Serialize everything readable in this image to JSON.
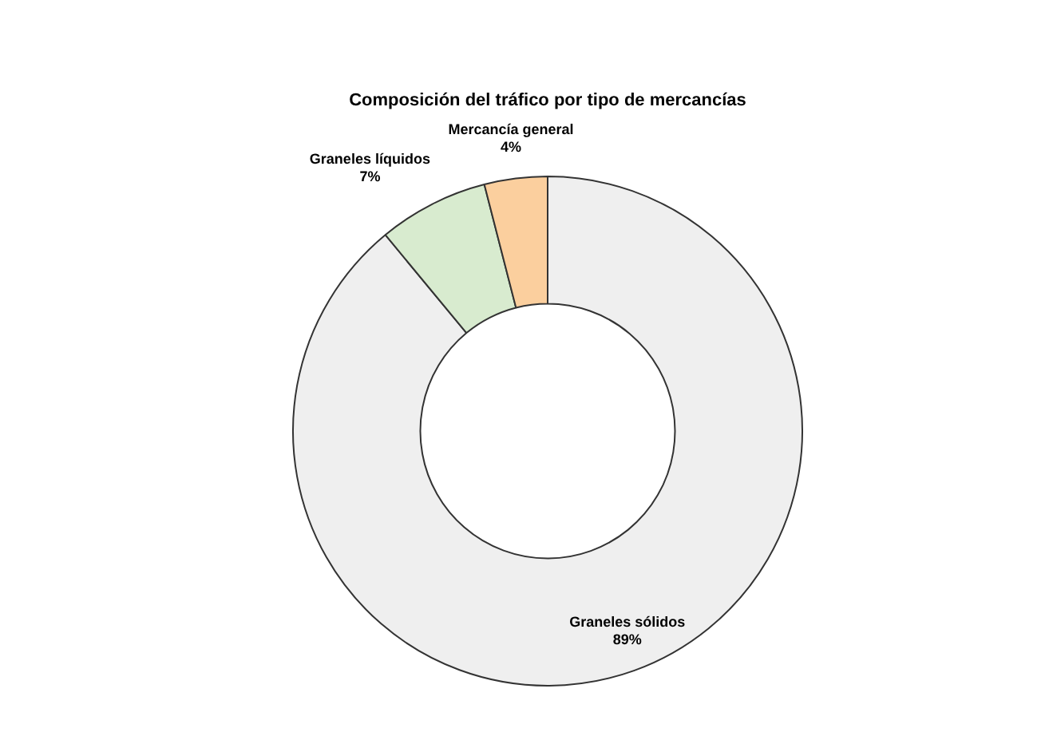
{
  "chart_data": {
    "type": "donut",
    "title": "Composición del tráfico por tipo de mercancías",
    "categories": [
      "Graneles sólidos",
      "Graneles líquidos",
      "Mercancía general"
    ],
    "values": [
      89,
      7,
      4
    ],
    "colors": [
      "#efefef",
      "#d8ebcf",
      "#fbcf9e"
    ],
    "value_labels": [
      "89%",
      "7%",
      "4%"
    ],
    "legend": false
  }
}
